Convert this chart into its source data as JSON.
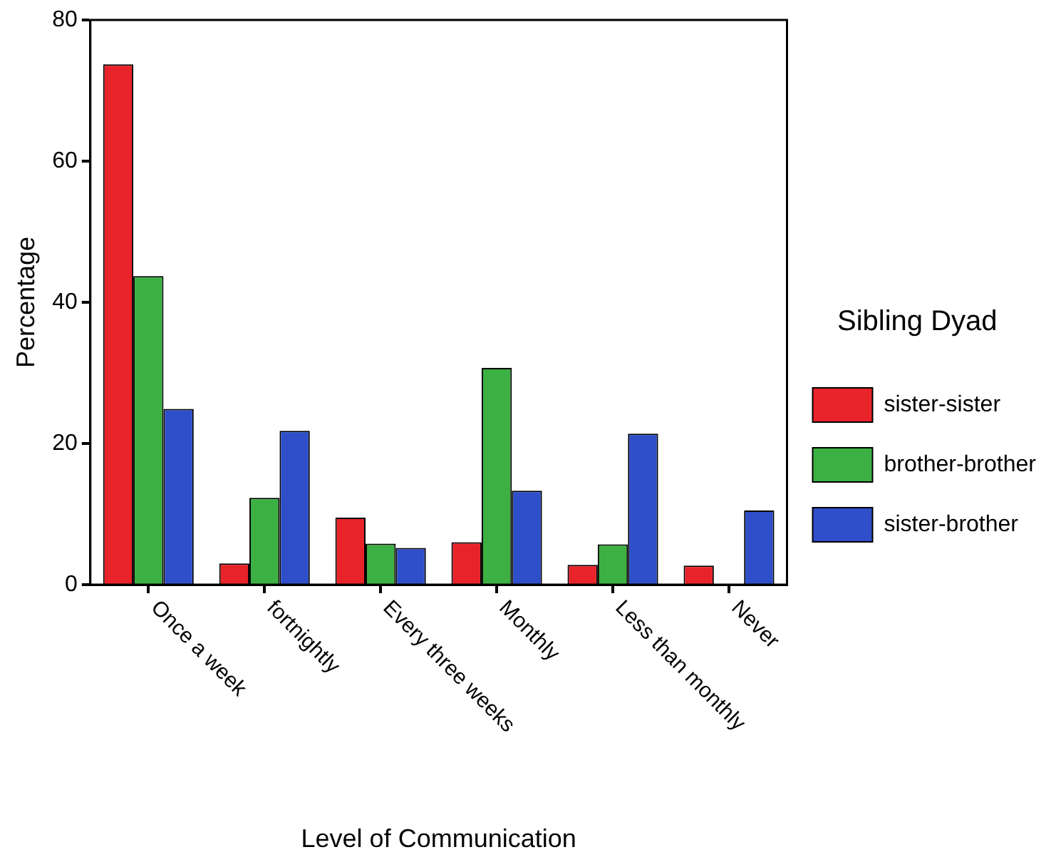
{
  "chart_data": {
    "type": "bar",
    "xlabel": "Level of Communication",
    "ylabel": "Percentage",
    "legend_title": "Sibling Dyad",
    "legend": "right",
    "grid": false,
    "categories": [
      "Once a week",
      "fortnightly",
      "Every three weeks",
      "Monthly",
      "Less than monthly",
      "Never"
    ],
    "ylim": [
      0,
      80
    ],
    "yticks": [
      0,
      20,
      40,
      60,
      80
    ],
    "series": [
      {
        "name": "sister-sister",
        "color": "#e8232a",
        "values": [
          73.7,
          3.0,
          9.5,
          6.0,
          2.8,
          2.7
        ]
      },
      {
        "name": "brother-brother",
        "color": "#3cb043",
        "values": [
          43.7,
          12.3,
          5.8,
          30.7,
          5.7,
          null
        ]
      },
      {
        "name": "sister-brother",
        "color": "#2e4fc9",
        "values": [
          24.9,
          21.8,
          5.2,
          13.3,
          21.4,
          10.5
        ]
      }
    ]
  }
}
